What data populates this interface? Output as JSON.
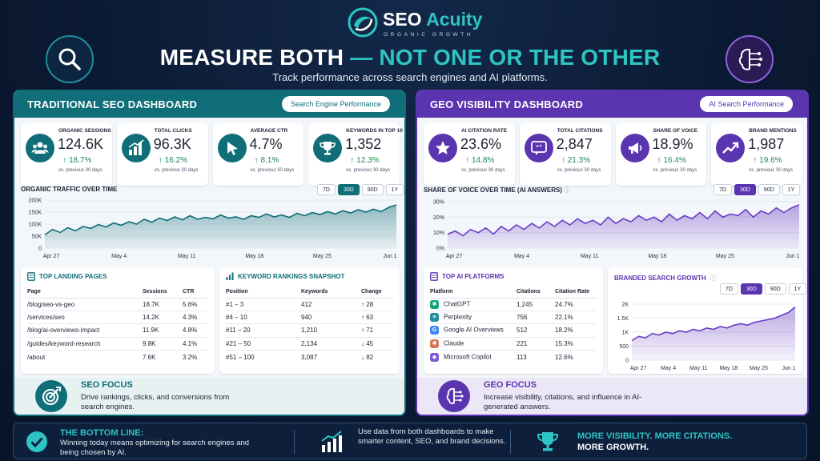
{
  "brand": {
    "name_part1": "SEO",
    "name_part2": "Acuity",
    "tagline": "ORGANIC GROWTH",
    "logo_icon": "swirl-logo-icon"
  },
  "headline": {
    "part1": "MEASURE BOTH",
    "part2": "— NOT ONE OR THE OTHER",
    "subtitle": "Track performance across search engines and AI platforms."
  },
  "hero_icons": {
    "left": "magnifier-icon",
    "right": "ai-brain-icon"
  },
  "seo": {
    "title": "TRADITIONAL SEO DASHBOARD",
    "pill": "Search Engine Performance",
    "kpis": [
      {
        "label": "ORGANIC SESSIONS",
        "value": "124.6K",
        "delta": "18.7%",
        "vs": "vs. previous 30 days",
        "icon": "users-icon"
      },
      {
        "label": "TOTAL CLICKS",
        "value": "96.3K",
        "delta": "16.2%",
        "vs": "vs. previous 30 days",
        "icon": "bar-chart-icon"
      },
      {
        "label": "AVERAGE CTR",
        "value": "4.7%",
        "delta": "8.1%",
        "vs": "vs. previous 30 days",
        "icon": "cursor-icon"
      },
      {
        "label": "KEYWORDS IN TOP 10",
        "value": "1,352",
        "delta": "12.3%",
        "vs": "vs. previous 30 days",
        "icon": "trophy-icon"
      }
    ],
    "chart_title": "ORGANIC TRAFFIC OVER TIME",
    "ranges": [
      "7D",
      "30D",
      "90D",
      "1Y"
    ],
    "active_range": "30D",
    "landing": {
      "title": "TOP LANDING PAGES",
      "headers": [
        "Page",
        "Sessions",
        "CTR"
      ],
      "rows": [
        [
          "/blog/seo-vs-geo",
          "18.7K",
          "5.6%"
        ],
        [
          "/services/seo",
          "14.2K",
          "4.3%"
        ],
        [
          "/blog/ai-overviews-impact",
          "11.9K",
          "4.8%"
        ],
        [
          "/guides/keyword-research",
          "9.8K",
          "4.1%"
        ],
        [
          "/about",
          "7.6K",
          "3.2%"
        ]
      ]
    },
    "rankings": {
      "title": "KEYWORD RANKINGS SNAPSHOT",
      "headers": [
        "Position",
        "Keywords",
        "Change"
      ],
      "rows": [
        {
          "position": "#1 – 3",
          "keywords": "412",
          "change": "28",
          "dir": "up"
        },
        {
          "position": "#4 – 10",
          "keywords": "940",
          "change": "63",
          "dir": "up"
        },
        {
          "position": "#11 – 20",
          "keywords": "1,210",
          "change": "71",
          "dir": "up"
        },
        {
          "position": "#21 – 50",
          "keywords": "2,134",
          "change": "45",
          "dir": "down"
        },
        {
          "position": "#51 – 100",
          "keywords": "3,087",
          "change": "82",
          "dir": "down"
        }
      ]
    },
    "focus": {
      "title": "SEO FOCUS",
      "text": "Drive rankings, clicks, and conversions from search engines.",
      "icon": "target-icon"
    }
  },
  "geo": {
    "title": "GEO VISIBILITY DASHBOARD",
    "pill": "AI Search Performance",
    "kpis": [
      {
        "label": "AI CITATION RATE",
        "value": "23.6%",
        "delta": "14.8%",
        "vs": "vs. previous 30 days",
        "icon": "star-icon"
      },
      {
        "label": "TOTAL CITATIONS",
        "value": "2,847",
        "delta": "21.3%",
        "vs": "vs. previous 30 days",
        "icon": "quote-bubble-icon"
      },
      {
        "label": "SHARE OF VOICE",
        "value": "18.9%",
        "delta": "16.4%",
        "vs": "vs. previous 30 days",
        "icon": "megaphone-icon"
      },
      {
        "label": "BRAND MENTIONS",
        "value": "1,987",
        "delta": "19.6%",
        "vs": "vs. previous 30 days",
        "icon": "trend-up-icon"
      }
    ],
    "chart_title": "SHARE OF VOICE OVER TIME (AI ANSWERS)",
    "ranges": [
      "7D",
      "30D",
      "90D",
      "1Y"
    ],
    "active_range": "30D",
    "platforms": {
      "title": "TOP AI PLATFORMS",
      "headers": [
        "Platform",
        "Citations",
        "Citation Rate"
      ],
      "rows": [
        {
          "name": "ChatGPT",
          "citations": "1,245",
          "rate": "24.7%",
          "color": "#10a37f",
          "glyph": "✺"
        },
        {
          "name": "Perplexity",
          "citations": "756",
          "rate": "22.1%",
          "color": "#1f8e9c",
          "glyph": "✳"
        },
        {
          "name": "Google AI Overviews",
          "citations": "512",
          "rate": "18.2%",
          "color": "#4285f4",
          "glyph": "G"
        },
        {
          "name": "Claude",
          "citations": "221",
          "rate": "15.3%",
          "color": "#d97757",
          "glyph": "✱"
        },
        {
          "name": "Microsoft Copilot",
          "citations": "113",
          "rate": "12.6%",
          "color": "#7b5cd6",
          "glyph": "◆"
        }
      ]
    },
    "branded": {
      "title": "BRANDED SEARCH GROWTH",
      "ranges": [
        "7D",
        "30D",
        "90D",
        "1Y"
      ],
      "active_range": "30D"
    },
    "focus": {
      "title": "GEO FOCUS",
      "text": "Increase visibility, citations, and influence in AI-generated answers.",
      "icon": "ai-brain-icon"
    }
  },
  "bottom": {
    "line_title": "THE BOTTOM LINE:",
    "line_text": "Winning today means optimizing for search engines and being chosen by AI.",
    "mid_text": "Use data from both dashboards to make smarter content, SEO, and brand decisions.",
    "right_line1": "MORE VISIBILITY. MORE CITATIONS.",
    "right_line2": "MORE GROWTH."
  },
  "chart_data": [
    {
      "type": "area",
      "title": "ORGANIC TRAFFIC OVER TIME",
      "x_ticks": [
        "Apr 27",
        "May 4",
        "May 11",
        "May 18",
        "May 25",
        "Jun 1"
      ],
      "y_ticks": [
        "0",
        "50K",
        "100K",
        "150K",
        "200K"
      ],
      "ylim": [
        0,
        200000
      ],
      "x": [
        0,
        1,
        2,
        3,
        4,
        5,
        6,
        7,
        8,
        9,
        10,
        11,
        12,
        13,
        14,
        15,
        16,
        17,
        18,
        19,
        20,
        21,
        22,
        23,
        24,
        25,
        26,
        27,
        28,
        29,
        30,
        31,
        32,
        33,
        34,
        35,
        36,
        37,
        38,
        39,
        40,
        41,
        42,
        43,
        44,
        45,
        46
      ],
      "values": [
        55000,
        78000,
        65000,
        85000,
        72000,
        90000,
        82000,
        98000,
        88000,
        105000,
        95000,
        110000,
        100000,
        120000,
        108000,
        125000,
        115000,
        130000,
        118000,
        135000,
        120000,
        128000,
        122000,
        138000,
        125000,
        130000,
        120000,
        135000,
        128000,
        142000,
        130000,
        138000,
        128000,
        145000,
        135000,
        148000,
        140000,
        152000,
        142000,
        156000,
        146000,
        160000,
        150000,
        162000,
        152000,
        170000,
        180000
      ]
    },
    {
      "type": "area",
      "title": "SHARE OF VOICE OVER TIME (AI ANSWERS)",
      "x_ticks": [
        "Apr 27",
        "May 4",
        "May 11",
        "May 18",
        "May 25",
        "Jun 1"
      ],
      "y_ticks": [
        "0%",
        "10%",
        "20%",
        "30%"
      ],
      "ylim": [
        0,
        30
      ],
      "x": [
        0,
        1,
        2,
        3,
        4,
        5,
        6,
        7,
        8,
        9,
        10,
        11,
        12,
        13,
        14,
        15,
        16,
        17,
        18,
        19,
        20,
        21,
        22,
        23,
        24,
        25,
        26,
        27,
        28,
        29,
        30,
        31,
        32,
        33,
        34,
        35,
        36,
        37,
        38,
        39,
        40,
        41,
        42,
        43,
        44,
        45,
        46
      ],
      "values": [
        9,
        11,
        8,
        12,
        10,
        13,
        9,
        14,
        11,
        15,
        12,
        16,
        13,
        17,
        14,
        18,
        15,
        19,
        16,
        18,
        15,
        20,
        16,
        19,
        17,
        21,
        18,
        20,
        17,
        22,
        18,
        21,
        19,
        23,
        19,
        24,
        20,
        22,
        21,
        25,
        20,
        24,
        22,
        26,
        23,
        26,
        28
      ]
    },
    {
      "type": "area",
      "title": "BRANDED SEARCH GROWTH",
      "x_ticks": [
        "Apr 27",
        "May 4",
        "May 11",
        "May 18",
        "May 25",
        "Jun 1"
      ],
      "y_ticks": [
        "0",
        "500",
        "1K",
        "1.5K",
        "2K"
      ],
      "ylim": [
        0,
        2000
      ],
      "x": [
        0,
        1,
        2,
        3,
        4,
        5,
        6,
        7,
        8,
        9,
        10,
        11,
        12,
        13,
        14,
        15,
        16,
        17,
        18,
        19,
        20,
        21,
        22,
        23,
        24
      ],
      "values": [
        700,
        850,
        800,
        950,
        900,
        1000,
        950,
        1050,
        1000,
        1100,
        1050,
        1150,
        1100,
        1200,
        1150,
        1250,
        1300,
        1250,
        1350,
        1400,
        1450,
        1500,
        1600,
        1700,
        1900
      ]
    }
  ]
}
